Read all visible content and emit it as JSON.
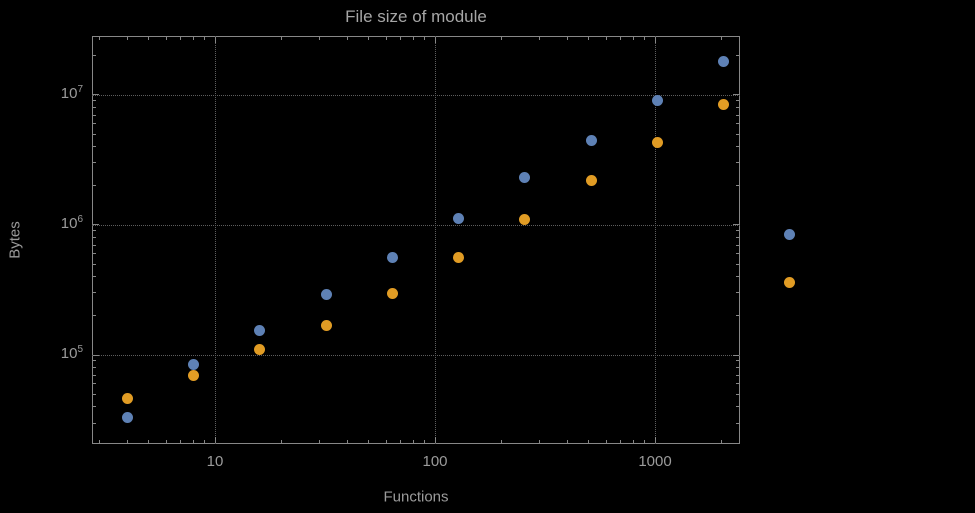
{
  "chart_data": {
    "type": "scatter",
    "title": "File size of module",
    "xlabel": "Functions",
    "ylabel": "Bytes",
    "x_scale": "log",
    "y_scale": "log",
    "grid": true,
    "frame": true,
    "legend_position": "none",
    "xlim": [
      2.76,
      2434
    ],
    "ylim": [
      20700,
      28400000
    ],
    "x_ticks": [
      10,
      100,
      1000
    ],
    "x_tick_labels": [
      "10",
      "100",
      "1000"
    ],
    "y_ticks": [
      100000,
      1000000,
      10000000
    ],
    "y_tick_base": "10",
    "y_tick_exponents": [
      5,
      6,
      7
    ],
    "x": [
      4,
      8,
      16,
      32,
      64,
      128,
      256,
      512,
      1024,
      2048,
      4096
    ],
    "series": [
      {
        "name": "series-blue",
        "color": "#5e81b5",
        "values": [
          33000,
          85000,
          155000,
          290000,
          560000,
          1130000,
          2300000,
          4500000,
          9000000,
          18000000,
          840000
        ]
      },
      {
        "name": "series-orange",
        "color": "#e19c24",
        "values": [
          46000,
          70000,
          110000,
          170000,
          295000,
          560000,
          1100000,
          2200000,
          4300000,
          8500000,
          360000
        ]
      }
    ],
    "colors": {
      "background": "#000000",
      "frame": "#878787",
      "grid": "#5e5e5e",
      "text": "#9b9b9b",
      "title": "#a6a6a6"
    }
  }
}
